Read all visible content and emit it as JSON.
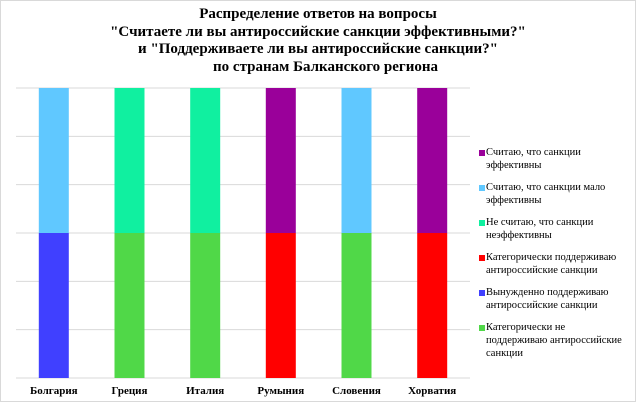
{
  "chart_data": {
    "type": "bar",
    "stacked": true,
    "title_lines": [
      "Распределение ответов на вопросы",
      "\"Считаете ли вы антироссийские санкции эффективными?\"",
      "и \"Поддерживаете ли вы антироссийские санкции?\"",
      "    по странам Балканского региона"
    ],
    "categories": [
      "Болгария",
      "Греция",
      "Италия",
      "Румыния",
      "Словения",
      "Хорватия"
    ],
    "series": [
      {
        "name": "Категорически не поддерживаю антироссийские санкции",
        "color": "#50d848",
        "values": [
          0,
          1,
          1,
          0,
          1,
          0
        ]
      },
      {
        "name": "Вынужденно поддерживаю антироссийские санкции",
        "color": "#4040ff",
        "values": [
          1,
          0,
          0,
          0,
          0,
          0
        ]
      },
      {
        "name": "Категорически поддерживаю антироссийские санкции",
        "color": "#ff0000",
        "values": [
          0,
          0,
          0,
          1,
          0,
          1
        ]
      },
      {
        "name": "Не считаю, что санкции неэффективны",
        "color": "#10f0a0",
        "values": [
          0,
          1,
          1,
          0,
          0,
          0
        ]
      },
      {
        "name": "Считаю, что санкции мало эффективны",
        "color": "#60c8ff",
        "values": [
          1,
          0,
          0,
          0,
          1,
          0
        ]
      },
      {
        "name": "Считаю, что санкции эффективны",
        "color": "#9a009a",
        "values": [
          0,
          0,
          0,
          1,
          0,
          1
        ]
      }
    ],
    "ylim": [
      0,
      2
    ],
    "grid": true,
    "legend": "right"
  },
  "legend_order": [
    5,
    4,
    3,
    2,
    1,
    0
  ]
}
